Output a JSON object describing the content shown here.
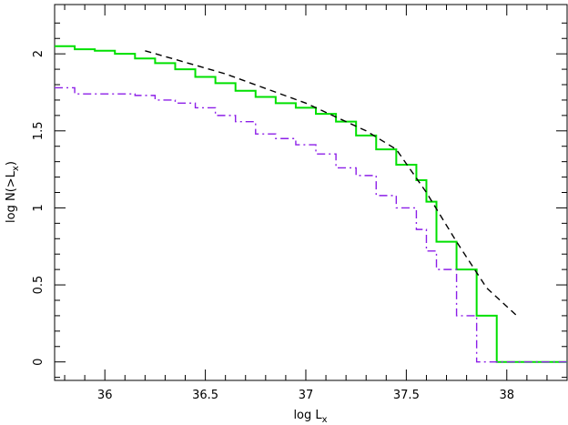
{
  "chart_data": {
    "type": "line",
    "title": "",
    "xlabel": "log L",
    "xlabel_sub": "x",
    "ylabel_parts": {
      "pre": "log N(>L",
      "sub": "x",
      "post": ")"
    },
    "xlim": [
      35.75,
      38.3
    ],
    "ylim": [
      -0.12,
      2.32
    ],
    "xticks": [
      36,
      36.5,
      37,
      37.5,
      38
    ],
    "xtick_labels": [
      "36",
      "36.5",
      "37",
      "37.5",
      "38"
    ],
    "yticks": [
      0,
      0.5,
      1,
      1.5,
      2
    ],
    "ytick_labels": [
      "0",
      "0.5",
      "1",
      "1.5",
      "2"
    ],
    "grid": false,
    "legend": "none",
    "series": [
      {
        "style": "step",
        "color": "#00e000",
        "dash": "solid",
        "points": [
          [
            35.75,
            2.05
          ],
          [
            35.85,
            2.05
          ],
          [
            35.95,
            2.03
          ],
          [
            36.05,
            2.02
          ],
          [
            36.15,
            2.0
          ],
          [
            36.25,
            1.97
          ],
          [
            36.35,
            1.94
          ],
          [
            36.45,
            1.9
          ],
          [
            36.55,
            1.85
          ],
          [
            36.65,
            1.81
          ],
          [
            36.75,
            1.76
          ],
          [
            36.85,
            1.72
          ],
          [
            36.95,
            1.68
          ],
          [
            37.05,
            1.65
          ],
          [
            37.15,
            1.61
          ],
          [
            37.25,
            1.56
          ],
          [
            37.35,
            1.47
          ],
          [
            37.45,
            1.38
          ],
          [
            37.55,
            1.28
          ],
          [
            37.6,
            1.18
          ],
          [
            37.65,
            1.04
          ],
          [
            37.75,
            0.78
          ],
          [
            37.85,
            0.6
          ],
          [
            37.95,
            0.3
          ],
          [
            38.05,
            0.0
          ],
          [
            38.3,
            0.0
          ]
        ]
      },
      {
        "style": "step",
        "color": "#8c1fe8",
        "dash": "dashdot",
        "points": [
          [
            35.75,
            1.78
          ],
          [
            35.85,
            1.78
          ],
          [
            35.95,
            1.74
          ],
          [
            36.05,
            1.74
          ],
          [
            36.15,
            1.74
          ],
          [
            36.25,
            1.73
          ],
          [
            36.35,
            1.7
          ],
          [
            36.45,
            1.68
          ],
          [
            36.55,
            1.65
          ],
          [
            36.65,
            1.6
          ],
          [
            36.75,
            1.56
          ],
          [
            36.85,
            1.48
          ],
          [
            36.95,
            1.45
          ],
          [
            37.05,
            1.41
          ],
          [
            37.15,
            1.35
          ],
          [
            37.25,
            1.26
          ],
          [
            37.35,
            1.21
          ],
          [
            37.45,
            1.08
          ],
          [
            37.55,
            1.0
          ],
          [
            37.6,
            0.86
          ],
          [
            37.65,
            0.72
          ],
          [
            37.75,
            0.6
          ],
          [
            37.85,
            0.3
          ],
          [
            37.95,
            0.0
          ],
          [
            38.3,
            0.0
          ]
        ]
      },
      {
        "style": "line",
        "color": "#000000",
        "dash": "dashed",
        "points": [
          [
            36.2,
            2.02
          ],
          [
            36.6,
            1.87
          ],
          [
            37.0,
            1.68
          ],
          [
            37.3,
            1.5
          ],
          [
            37.45,
            1.38
          ],
          [
            37.6,
            1.1
          ],
          [
            37.75,
            0.78
          ],
          [
            37.9,
            0.48
          ],
          [
            38.05,
            0.3
          ]
        ]
      }
    ]
  }
}
